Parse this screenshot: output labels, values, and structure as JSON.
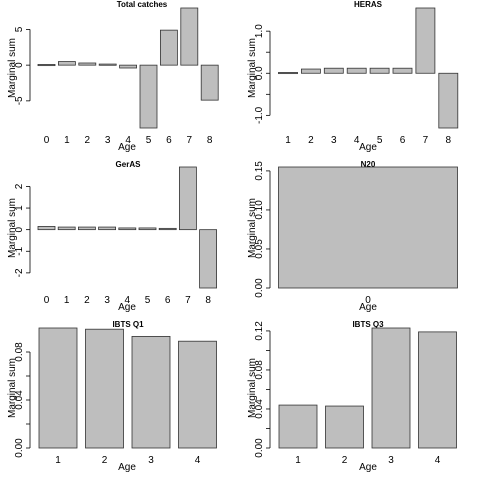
{
  "chart_data": [
    {
      "type": "bar",
      "title": "Total catches",
      "xlabel": "Age",
      "ylabel": "Marginal sum",
      "categories": [
        "0",
        "1",
        "2",
        "3",
        "4",
        "5",
        "6",
        "7",
        "8"
      ],
      "values": [
        0.1,
        0.5,
        0.3,
        0.15,
        -0.4,
        -8.8,
        4.9,
        8.0,
        -4.9
      ],
      "ylim": [
        -8.8,
        8.0
      ],
      "yticks": [
        -5,
        0,
        5
      ],
      "ytick_labels": [
        "-5",
        "0",
        "5"
      ]
    },
    {
      "type": "bar",
      "title": "HERAS",
      "xlabel": "Age",
      "ylabel": "Marginal sum",
      "categories": [
        "1",
        "2",
        "3",
        "4",
        "5",
        "6",
        "7",
        "8"
      ],
      "values": [
        0.02,
        0.1,
        0.12,
        0.12,
        0.12,
        0.12,
        1.55,
        -1.3
      ],
      "ylim": [
        -1.3,
        1.55
      ],
      "yticks": [
        -1.0,
        -0.5,
        0.0,
        0.5,
        1.0
      ],
      "ytick_labels": [
        "-1.0",
        "",
        "0.0",
        "",
        "1.0"
      ]
    },
    {
      "type": "bar",
      "title": "GerAS",
      "xlabel": "Age",
      "ylabel": "Marginal sum",
      "categories": [
        "0",
        "1",
        "2",
        "3",
        "4",
        "5",
        "6",
        "7",
        "8"
      ],
      "values": [
        0.15,
        0.12,
        0.12,
        0.12,
        0.08,
        0.08,
        0.06,
        2.9,
        -2.7
      ],
      "ylim": [
        -2.7,
        2.9
      ],
      "yticks": [
        -2,
        -1,
        0,
        1,
        2
      ],
      "ytick_labels": [
        "-2",
        "-1",
        "0",
        "1",
        "2"
      ]
    },
    {
      "type": "bar",
      "title": "N20",
      "xlabel": "Age",
      "ylabel": "Marginal sum",
      "categories": [
        "0"
      ],
      "values": [
        0.155
      ],
      "ylim": [
        0,
        0.155
      ],
      "yticks": [
        0.0,
        0.05,
        0.1,
        0.15
      ],
      "ytick_labels": [
        "0.00",
        "0.05",
        "0.10",
        "0.15"
      ]
    },
    {
      "type": "bar",
      "title": "IBTS Q1",
      "xlabel": "Age",
      "ylabel": "Marginal sum",
      "categories": [
        "1",
        "2",
        "3",
        "4"
      ],
      "values": [
        0.1,
        0.099,
        0.093,
        0.089
      ],
      "ylim": [
        0,
        0.1
      ],
      "yticks": [
        0.0,
        0.02,
        0.04,
        0.06,
        0.08
      ],
      "ytick_labels": [
        "0.00",
        "",
        "0.04",
        "",
        "0.08"
      ]
    },
    {
      "type": "bar",
      "title": "IBTS Q3",
      "xlabel": "Age",
      "ylabel": "Marginal sum",
      "categories": [
        "1",
        "2",
        "3",
        "4"
      ],
      "values": [
        0.044,
        0.043,
        0.123,
        0.119
      ],
      "ylim": [
        0,
        0.123
      ],
      "yticks": [
        0.0,
        0.02,
        0.04,
        0.06,
        0.08,
        0.1,
        0.12
      ],
      "ytick_labels": [
        "0.00",
        "",
        "0.04",
        "",
        "0.08",
        "",
        "0.12"
      ]
    }
  ],
  "colors": {
    "bar_fill": "#bebebe",
    "bar_stroke": "#333333"
  }
}
